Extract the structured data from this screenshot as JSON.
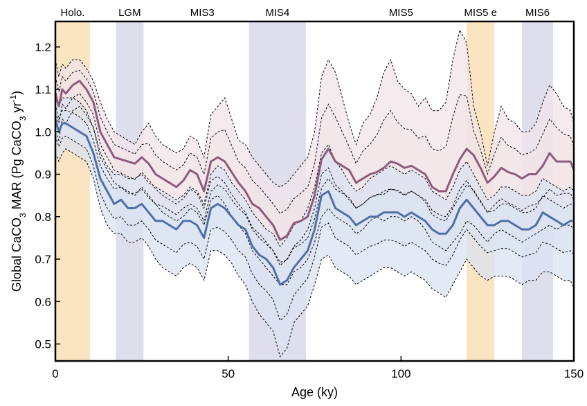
{
  "chart_data": {
    "type": "line",
    "title": "",
    "xlabel": "Age (ky)",
    "ylabel": {
      "prefix": "Global CaCO",
      "sub": "3",
      "middle": " MAR (Pg CaCO",
      "sub2": "3",
      "suffix": " yr",
      "sup": "-1",
      "close": ")"
    },
    "xlim": [
      0,
      150
    ],
    "ylim": [
      0.46,
      1.26
    ],
    "xticks": [
      0,
      50,
      100,
      150
    ],
    "yticks": [
      0.5,
      0.6,
      0.7,
      0.8,
      0.9,
      1.0,
      1.1,
      1.2
    ],
    "ytick_labels": [
      "0.5",
      "0.6",
      "0.7",
      "0.8",
      "0.9",
      "1.0",
      "1.1",
      "1.2"
    ],
    "xtick_labels": [
      "0",
      "50",
      "100",
      "150"
    ],
    "grid": false,
    "legend": "none",
    "bands": [
      {
        "label": "Holo.",
        "start": 0,
        "end": 10,
        "color": "#fbe3bf"
      },
      {
        "label": "LGM",
        "start": 17.5,
        "end": 25.5,
        "color": "#dcdcec"
      },
      {
        "label": "MIS3",
        "start": null,
        "end": null,
        "label_x": 42.5,
        "color": "#ffffff"
      },
      {
        "label": "MIS4",
        "start": 56,
        "end": 72.5,
        "color": "#dcdcec"
      },
      {
        "label": "MIS5",
        "start": null,
        "end": null,
        "label_x": 100,
        "color": "#ffffff"
      },
      {
        "label": "MIS5 e",
        "start": 119,
        "end": 127,
        "color": "#fbe3bf"
      },
      {
        "label": "MIS6",
        "start": 135,
        "end": 144,
        "color": "#dcdcec"
      }
    ],
    "x": [
      0,
      1,
      2,
      3,
      5,
      7,
      9,
      11,
      13,
      15,
      17,
      19,
      21,
      23,
      25,
      27,
      29,
      31,
      33,
      35,
      37,
      39,
      41,
      43,
      45,
      47,
      49,
      51,
      53,
      55,
      57,
      59,
      61,
      63,
      65,
      67,
      69,
      71,
      73,
      75,
      77,
      79,
      81,
      83,
      85,
      87,
      89,
      91,
      93,
      95,
      97,
      99,
      101,
      103,
      105,
      107,
      109,
      111,
      113,
      115,
      117,
      119,
      121,
      123,
      125,
      127,
      129,
      131,
      133,
      135,
      137,
      139,
      141,
      143,
      145,
      147,
      149,
      150
    ],
    "series": [
      {
        "color": "#8e5a7c",
        "fill": "#f2e4e8",
        "values": [
          1.09,
          1.06,
          1.1,
          1.09,
          1.11,
          1.12,
          1.1,
          1.07,
          1.0,
          0.97,
          0.94,
          0.935,
          0.93,
          0.925,
          0.94,
          0.925,
          0.9,
          0.89,
          0.88,
          0.87,
          0.885,
          0.91,
          0.9,
          0.86,
          0.93,
          0.94,
          0.93,
          0.905,
          0.88,
          0.86,
          0.83,
          0.82,
          0.8,
          0.78,
          0.745,
          0.755,
          0.785,
          0.79,
          0.8,
          0.85,
          0.935,
          0.96,
          0.93,
          0.92,
          0.91,
          0.88,
          0.89,
          0.9,
          0.905,
          0.915,
          0.93,
          0.925,
          0.915,
          0.92,
          0.91,
          0.9,
          0.87,
          0.86,
          0.86,
          0.9,
          0.935,
          0.96,
          0.945,
          0.915,
          0.88,
          0.895,
          0.915,
          0.905,
          0.9,
          0.89,
          0.9,
          0.9,
          0.92,
          0.95,
          0.93,
          0.93,
          0.93,
          0.91
        ],
        "upper": [
          1.17,
          1.13,
          1.16,
          1.15,
          1.17,
          1.17,
          1.15,
          1.12,
          1.07,
          1.03,
          1.0,
          0.99,
          0.98,
          0.97,
          1.0,
          1.02,
          0.99,
          0.97,
          0.96,
          0.95,
          0.96,
          0.99,
          0.98,
          0.94,
          1.04,
          1.06,
          1.08,
          1.03,
          0.98,
          0.97,
          0.94,
          0.92,
          0.9,
          0.88,
          0.87,
          0.88,
          0.9,
          0.92,
          0.94,
          1.0,
          1.13,
          1.17,
          1.14,
          1.08,
          1.02,
          0.97,
          1.02,
          1.04,
          1.08,
          1.14,
          1.17,
          1.12,
          1.1,
          1.09,
          1.06,
          1.08,
          1.05,
          1.05,
          1.07,
          1.17,
          1.24,
          1.21,
          1.06,
          1.0,
          0.92,
          1.0,
          1.06,
          1.03,
          1.02,
          1.0,
          1.0,
          1.02,
          1.07,
          1.11,
          1.09,
          1.06,
          1.05,
          1.02
        ],
        "lower": [
          1.0,
          0.98,
          1.03,
          1.02,
          1.05,
          1.06,
          1.04,
          1.01,
          0.94,
          0.91,
          0.88,
          0.87,
          0.86,
          0.85,
          0.87,
          0.85,
          0.83,
          0.81,
          0.8,
          0.79,
          0.8,
          0.82,
          0.81,
          0.78,
          0.84,
          0.85,
          0.83,
          0.8,
          0.78,
          0.76,
          0.72,
          0.7,
          0.68,
          0.66,
          0.64,
          0.64,
          0.67,
          0.68,
          0.7,
          0.74,
          0.8,
          0.82,
          0.8,
          0.79,
          0.78,
          0.76,
          0.77,
          0.79,
          0.8,
          0.79,
          0.8,
          0.8,
          0.79,
          0.8,
          0.79,
          0.77,
          0.74,
          0.73,
          0.72,
          0.74,
          0.76,
          0.79,
          0.78,
          0.76,
          0.74,
          0.76,
          0.77,
          0.76,
          0.75,
          0.74,
          0.75,
          0.76,
          0.77,
          0.78,
          0.77,
          0.78,
          0.78,
          0.77
        ]
      },
      {
        "color": "#4f6fa7",
        "fill": "#dbe3f2",
        "values": [
          1.03,
          1.0,
          1.02,
          1.02,
          1.01,
          1.0,
          0.99,
          0.95,
          0.89,
          0.86,
          0.83,
          0.84,
          0.82,
          0.82,
          0.83,
          0.81,
          0.79,
          0.79,
          0.78,
          0.77,
          0.79,
          0.79,
          0.78,
          0.75,
          0.82,
          0.83,
          0.82,
          0.8,
          0.78,
          0.77,
          0.73,
          0.71,
          0.7,
          0.68,
          0.64,
          0.65,
          0.68,
          0.7,
          0.72,
          0.77,
          0.85,
          0.86,
          0.82,
          0.81,
          0.8,
          0.78,
          0.79,
          0.8,
          0.8,
          0.81,
          0.81,
          0.81,
          0.8,
          0.81,
          0.8,
          0.79,
          0.77,
          0.76,
          0.76,
          0.78,
          0.82,
          0.84,
          0.82,
          0.8,
          0.78,
          0.78,
          0.79,
          0.79,
          0.78,
          0.77,
          0.77,
          0.78,
          0.81,
          0.8,
          0.79,
          0.78,
          0.79,
          0.79
        ],
        "upper": [
          1.1,
          1.06,
          1.08,
          1.08,
          1.08,
          1.07,
          1.05,
          1.01,
          0.95,
          0.92,
          0.9,
          0.9,
          0.89,
          0.89,
          0.9,
          0.88,
          0.87,
          0.86,
          0.85,
          0.84,
          0.85,
          0.87,
          0.86,
          0.83,
          0.9,
          0.92,
          0.91,
          0.88,
          0.86,
          0.84,
          0.81,
          0.79,
          0.77,
          0.76,
          0.73,
          0.75,
          0.78,
          0.79,
          0.82,
          0.87,
          0.95,
          0.97,
          0.93,
          0.91,
          0.88,
          0.86,
          0.87,
          0.89,
          0.9,
          0.91,
          0.92,
          0.91,
          0.9,
          0.91,
          0.9,
          0.89,
          0.86,
          0.85,
          0.84,
          0.87,
          0.91,
          0.93,
          0.9,
          0.87,
          0.84,
          0.85,
          0.87,
          0.87,
          0.86,
          0.85,
          0.85,
          0.86,
          0.89,
          0.88,
          0.87,
          0.86,
          0.87,
          0.86
        ],
        "lower": [
          0.95,
          0.93,
          0.95,
          0.96,
          0.95,
          0.94,
          0.93,
          0.89,
          0.82,
          0.78,
          0.76,
          0.76,
          0.74,
          0.74,
          0.75,
          0.73,
          0.7,
          0.68,
          0.67,
          0.66,
          0.68,
          0.69,
          0.68,
          0.65,
          0.72,
          0.72,
          0.71,
          0.69,
          0.66,
          0.64,
          0.6,
          0.57,
          0.55,
          0.53,
          0.47,
          0.49,
          0.55,
          0.57,
          0.59,
          0.64,
          0.7,
          0.71,
          0.68,
          0.67,
          0.66,
          0.64,
          0.65,
          0.66,
          0.67,
          0.68,
          0.68,
          0.67,
          0.66,
          0.67,
          0.66,
          0.65,
          0.63,
          0.62,
          0.61,
          0.64,
          0.67,
          0.7,
          0.68,
          0.66,
          0.65,
          0.66,
          0.66,
          0.66,
          0.65,
          0.64,
          0.65,
          0.65,
          0.67,
          0.67,
          0.66,
          0.65,
          0.65,
          0.63
        ]
      }
    ],
    "dashed_colors": "#000000"
  }
}
